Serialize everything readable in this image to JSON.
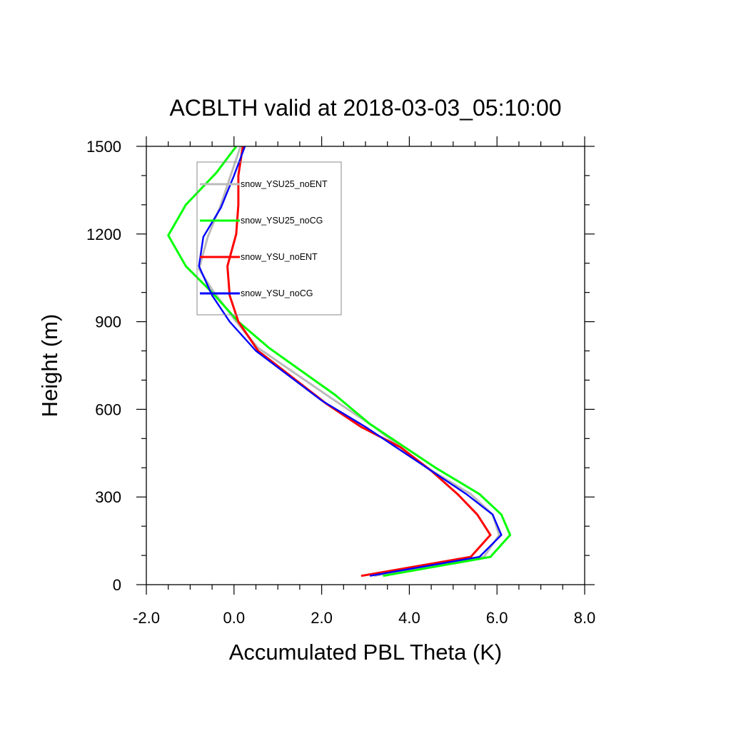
{
  "chart_data": {
    "type": "line",
    "title": "ACBLTH valid at 2018-03-03_05:10:00",
    "xlabel": "Accumulated PBL Theta (K)",
    "ylabel": "Height (m)",
    "xlim": [
      -2.0,
      8.0
    ],
    "ylim": [
      0,
      1500
    ],
    "x_ticks": [
      -2.0,
      0.0,
      2.0,
      4.0,
      6.0,
      8.0
    ],
    "x_tick_labels": [
      "-2.0",
      "0.0",
      "2.0",
      "4.0",
      "6.0",
      "8.0"
    ],
    "y_ticks": [
      0,
      300,
      600,
      900,
      1200,
      1500
    ],
    "y_tick_labels": [
      "0",
      "300",
      "600",
      "900",
      "1200",
      "1500"
    ],
    "grid": false,
    "legend_position": "top-left",
    "series": [
      {
        "name": "snow_YSU25_noENT",
        "color": "#bbbbbb",
        "x": [
          3.2,
          5.7,
          6.05,
          5.9,
          5.4,
          4.4,
          3.2,
          2.2,
          0.55,
          0.05,
          -0.5,
          -0.8,
          -0.6,
          -0.3,
          -0.1,
          0.15
        ],
        "y": [
          30,
          95,
          170,
          240,
          310,
          400,
          540,
          640,
          810,
          900,
          1010,
          1080,
          1190,
          1300,
          1390,
          1500
        ]
      },
      {
        "name": "snow_YSU25_noCG",
        "color": "#00ff00",
        "x": [
          3.4,
          5.85,
          6.3,
          6.1,
          5.6,
          4.6,
          3.1,
          2.3,
          0.8,
          0.1,
          -0.5,
          -1.1,
          -1.5,
          -1.1,
          -0.4,
          0.05
        ],
        "y": [
          30,
          95,
          170,
          240,
          310,
          400,
          550,
          650,
          810,
          900,
          1000,
          1090,
          1195,
          1300,
          1410,
          1500
        ]
      },
      {
        "name": "snow_YSU_noENT",
        "color": "#ff0000",
        "x": [
          2.9,
          5.4,
          5.85,
          5.55,
          5.1,
          4.5,
          3.8,
          2.9,
          2.1,
          0.55,
          0.1,
          -0.1,
          -0.15,
          0.05,
          0.1,
          0.1,
          0.2
        ],
        "y": [
          30,
          95,
          170,
          240,
          310,
          390,
          470,
          540,
          620,
          800,
          900,
          990,
          1090,
          1200,
          1300,
          1400,
          1500
        ]
      },
      {
        "name": "snow_YSU_noCG",
        "color": "#0000ff",
        "x": [
          3.1,
          5.6,
          6.1,
          5.9,
          5.3,
          4.4,
          3.0,
          2.0,
          0.5,
          -0.1,
          -0.5,
          -0.8,
          -0.7,
          -0.3,
          0.0,
          0.25
        ],
        "y": [
          30,
          95,
          170,
          240,
          310,
          400,
          540,
          630,
          800,
          900,
          990,
          1090,
          1190,
          1290,
          1400,
          1500
        ]
      }
    ]
  }
}
